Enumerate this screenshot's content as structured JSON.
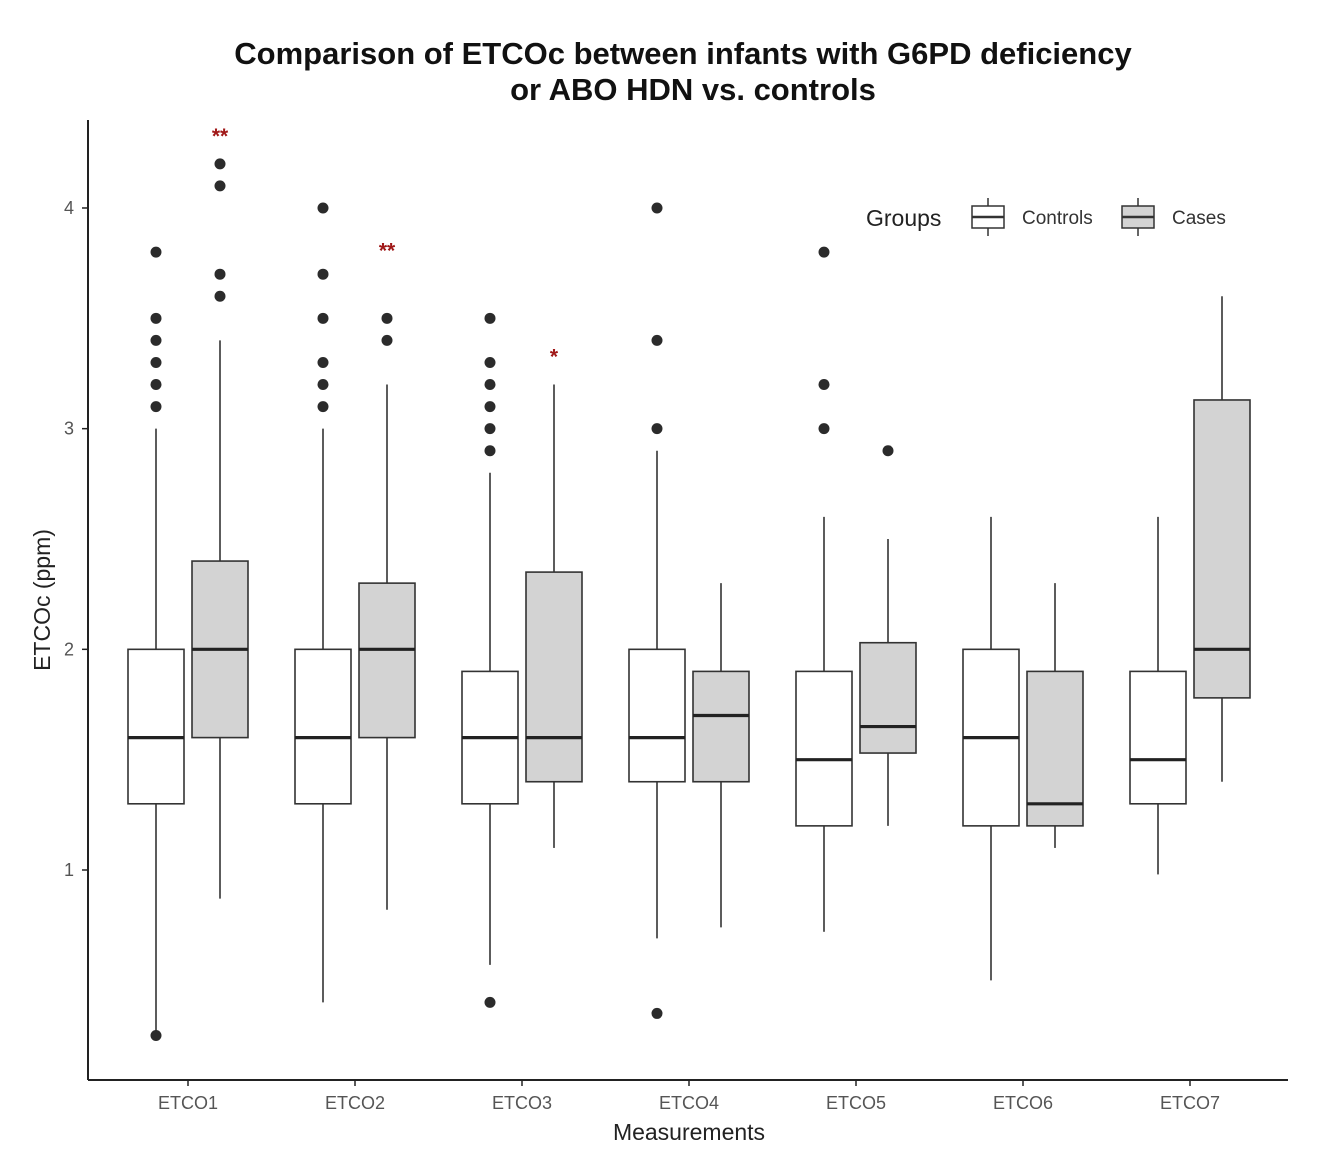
{
  "chart_data": {
    "type": "box",
    "title_line1": "Comparison of ETCOc between infants with G6PD deficiency",
    "title_line2": "or ABO HDN vs. controls",
    "xlabel": "Measurements",
    "ylabel": "ETCOc (ppm)",
    "ylim": [
      0,
      4.4
    ],
    "yticks": [
      1,
      2,
      3,
      4
    ],
    "grid": false,
    "legend": {
      "title": "Groups",
      "position": "top-right",
      "items": [
        {
          "label": "Controls",
          "fill": "#ffffff"
        },
        {
          "label": "Cases",
          "fill": "#d3d3d3"
        }
      ]
    },
    "categories": [
      "ETCO1",
      "ETCO2",
      "ETCO3",
      "ETCO4",
      "ETCO5",
      "ETCO6",
      "ETCO7"
    ],
    "series": [
      {
        "name": "Controls",
        "boxes": [
          {
            "whisker_low": 0.25,
            "q1": 1.3,
            "median": 1.6,
            "q3": 2.0,
            "whisker_high": 3.0,
            "outliers": [
              3.1,
              3.2,
              3.3,
              3.4,
              3.5,
              3.8,
              0.25
            ]
          },
          {
            "whisker_low": 0.4,
            "q1": 1.3,
            "median": 1.6,
            "q3": 2.0,
            "whisker_high": 3.0,
            "outliers": [
              3.1,
              3.2,
              3.3,
              3.5,
              3.7,
              4.0
            ]
          },
          {
            "whisker_low": 0.57,
            "q1": 1.3,
            "median": 1.6,
            "q3": 1.9,
            "whisker_high": 2.8,
            "outliers": [
              2.9,
              3.0,
              3.1,
              3.2,
              3.3,
              3.5,
              0.4
            ]
          },
          {
            "whisker_low": 0.69,
            "q1": 1.4,
            "median": 1.6,
            "q3": 2.0,
            "whisker_high": 2.9,
            "outliers": [
              3.0,
              3.4,
              4.0,
              0.35
            ]
          },
          {
            "whisker_low": 0.72,
            "q1": 1.2,
            "median": 1.5,
            "q3": 1.9,
            "whisker_high": 2.6,
            "outliers": [
              3.0,
              3.2,
              3.8
            ]
          },
          {
            "whisker_low": 0.5,
            "q1": 1.2,
            "median": 1.6,
            "q3": 2.0,
            "whisker_high": 2.6,
            "outliers": []
          },
          {
            "whisker_low": 0.98,
            "q1": 1.3,
            "median": 1.5,
            "q3": 1.9,
            "whisker_high": 2.6,
            "outliers": []
          }
        ]
      },
      {
        "name": "Cases",
        "boxes": [
          {
            "whisker_low": 0.87,
            "q1": 1.6,
            "median": 2.0,
            "q3": 2.4,
            "whisker_high": 3.4,
            "outliers": [
              3.6,
              3.7,
              4.1,
              4.2
            ]
          },
          {
            "whisker_low": 0.82,
            "q1": 1.6,
            "median": 2.0,
            "q3": 2.3,
            "whisker_high": 3.2,
            "outliers": [
              3.4,
              3.5
            ]
          },
          {
            "whisker_low": 1.1,
            "q1": 1.4,
            "median": 1.6,
            "q3": 2.35,
            "whisker_high": 3.2,
            "outliers": []
          },
          {
            "whisker_low": 0.74,
            "q1": 1.4,
            "median": 1.7,
            "q3": 1.9,
            "whisker_high": 2.3,
            "outliers": []
          },
          {
            "whisker_low": 1.2,
            "q1": 1.53,
            "median": 1.65,
            "q3": 2.03,
            "whisker_high": 2.5,
            "outliers": [
              2.9
            ]
          },
          {
            "whisker_low": 1.1,
            "q1": 1.2,
            "median": 1.3,
            "q3": 1.9,
            "whisker_high": 2.3,
            "outliers": []
          },
          {
            "whisker_low": 1.4,
            "q1": 1.78,
            "median": 2.0,
            "q3": 3.13,
            "whisker_high": 3.6,
            "outliers": []
          }
        ]
      }
    ],
    "annotations": [
      {
        "category": "ETCO1",
        "series": "Cases",
        "text": "**",
        "y": 4.35
      },
      {
        "category": "ETCO2",
        "series": "Cases",
        "text": "**",
        "y": 3.83
      },
      {
        "category": "ETCO3",
        "series": "Cases",
        "text": "*",
        "y": 3.35
      }
    ],
    "colors": {
      "controls_fill": "#ffffff",
      "cases_fill": "#d3d3d3",
      "outline": "#333333",
      "point": "#2b2b2b",
      "significance": "#a01818"
    }
  }
}
